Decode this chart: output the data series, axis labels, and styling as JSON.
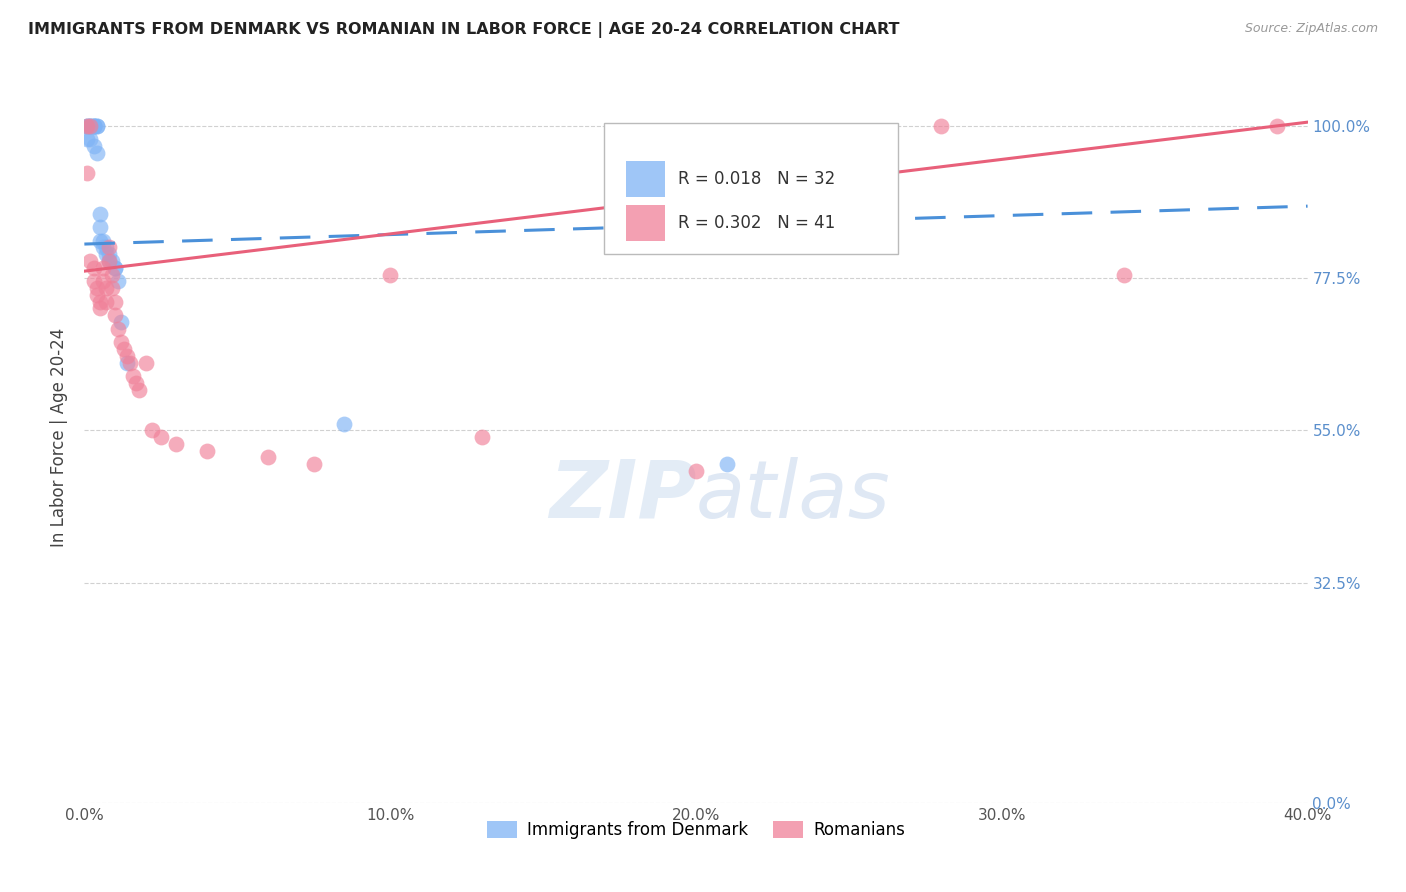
{
  "title": "IMMIGRANTS FROM DENMARK VS ROMANIAN IN LABOR FORCE | AGE 20-24 CORRELATION CHART",
  "source": "Source: ZipAtlas.com",
  "ylabel": "In Labor Force | Age 20-24",
  "xlabel_ticks": [
    "0.0%",
    "10.0%",
    "20.0%",
    "30.0%",
    "40.0%"
  ],
  "xlabel_vals": [
    0.0,
    0.1,
    0.2,
    0.3,
    0.4
  ],
  "ylabel_ticks": [
    "0.0%",
    "32.5%",
    "55.0%",
    "77.5%",
    "100.0%"
  ],
  "ylabel_vals": [
    0.0,
    0.325,
    0.55,
    0.775,
    1.0
  ],
  "xlim": [
    0.0,
    0.4
  ],
  "ylim": [
    0.0,
    1.08
  ],
  "denmark_R": 0.018,
  "denmark_N": 32,
  "romanian_R": 0.302,
  "romanian_N": 41,
  "denmark_color": "#7fb3f5",
  "romanian_color": "#f08098",
  "denmark_line_color": "#4a90d9",
  "romanian_line_color": "#e8607a",
  "grid_color": "#cccccc",
  "right_label_color": "#5b8fcc",
  "watermark_color": "#ddeeff",
  "background_color": "#ffffff",
  "denmark_x": [
    0.001,
    0.001,
    0.002,
    0.002,
    0.002,
    0.003,
    0.003,
    0.003,
    0.003,
    0.004,
    0.004,
    0.005,
    0.005,
    0.005,
    0.006,
    0.006,
    0.007,
    0.007,
    0.008,
    0.008,
    0.009,
    0.01,
    0.01,
    0.011,
    0.012,
    0.014,
    0.001,
    0.002,
    0.003,
    0.004,
    0.085,
    0.21
  ],
  "denmark_y": [
    1.0,
    1.0,
    1.0,
    1.0,
    1.0,
    1.0,
    1.0,
    1.0,
    1.0,
    1.0,
    1.0,
    0.87,
    0.85,
    0.83,
    0.83,
    0.82,
    0.82,
    0.81,
    0.81,
    0.8,
    0.8,
    0.79,
    0.79,
    0.77,
    0.71,
    0.65,
    0.98,
    0.98,
    0.97,
    0.96,
    0.56,
    0.5
  ],
  "romanian_x": [
    0.001,
    0.001,
    0.002,
    0.002,
    0.003,
    0.003,
    0.004,
    0.004,
    0.005,
    0.005,
    0.006,
    0.006,
    0.007,
    0.007,
    0.008,
    0.008,
    0.009,
    0.009,
    0.01,
    0.01,
    0.011,
    0.012,
    0.013,
    0.014,
    0.015,
    0.016,
    0.017,
    0.018,
    0.02,
    0.022,
    0.025,
    0.03,
    0.04,
    0.06,
    0.075,
    0.1,
    0.13,
    0.2,
    0.28,
    0.34,
    0.39
  ],
  "romanian_y": [
    1.0,
    0.93,
    1.0,
    0.8,
    0.79,
    0.77,
    0.76,
    0.75,
    0.74,
    0.73,
    0.79,
    0.77,
    0.76,
    0.74,
    0.82,
    0.8,
    0.78,
    0.76,
    0.74,
    0.72,
    0.7,
    0.68,
    0.67,
    0.66,
    0.65,
    0.63,
    0.62,
    0.61,
    0.65,
    0.55,
    0.54,
    0.53,
    0.52,
    0.51,
    0.5,
    0.78,
    0.54,
    0.49,
    1.0,
    0.78,
    1.0
  ]
}
